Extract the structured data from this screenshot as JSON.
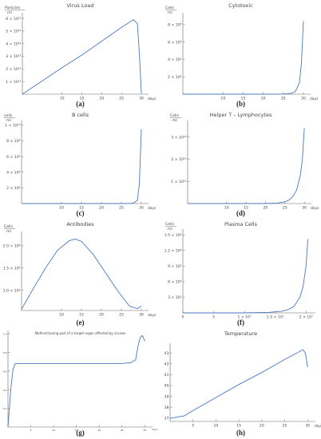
{
  "panels": [
    {
      "label": "(a)",
      "chart_data": {
        "type": "line",
        "title": "Virus Load",
        "ylabel_num": "Particles",
        "ylabel_den": "ml",
        "xlabel": "days",
        "xlim": [
          0,
          31
        ],
        "ylim": [
          0,
          6200000000000.0
        ],
        "xticks": [
          "10",
          "15",
          "20",
          "25",
          "30"
        ],
        "yticks": [
          "1 × 10¹²",
          "2 × 10¹²",
          "3 × 10¹²",
          "4 × 10¹²",
          "5 × 10¹²",
          "6 × 10¹²"
        ],
        "series": [
          {
            "x": [
              0,
              5,
              10,
              15,
              20,
              25,
              28,
              29,
              29.5,
              30
            ],
            "y": [
              0,
              1050000000000.0,
              2100000000000.0,
              3100000000000.0,
              4200000000000.0,
              5300000000000.0,
              5900000000000.0,
              5600000000000.0,
              3200000000000.0,
              100000000000.0
            ]
          }
        ]
      }
    },
    {
      "label": "(b)",
      "chart_data": {
        "type": "line",
        "title": "Cytotoxic",
        "ylabel_num": "Cells",
        "ylabel_den": "ml",
        "xlabel": "days",
        "xlim": [
          0,
          31
        ],
        "ylim": [
          0,
          900000.0
        ],
        "xticks": [
          "10",
          "15",
          "20",
          "25",
          "30"
        ],
        "yticks": [
          "2 × 10⁵",
          "4 × 10⁵",
          "6 × 10⁵",
          "8 × 10⁵"
        ],
        "series": [
          {
            "x": [
              0,
              20,
              25,
              27,
              28,
              29,
              29.5,
              30
            ],
            "y": [
              0,
              0,
              2000.0,
              10000.0,
              30000.0,
              130000.0,
              350000.0,
              840000.0
            ]
          }
        ]
      }
    },
    {
      "label": "(c)",
      "chart_data": {
        "type": "line",
        "title": "B cells",
        "ylabel_num": "cells",
        "ylabel_den": "ml",
        "xlabel": "days",
        "xlim": [
          0,
          31
        ],
        "ylim": [
          0,
          10200000000.0
        ],
        "xticks": [
          "10",
          "15",
          "20",
          "25",
          "30"
        ],
        "yticks": [
          "2 × 10⁹",
          "4 × 10⁹",
          "6 × 10⁹",
          "8 × 10⁹",
          "1 × 10¹⁰"
        ],
        "series": [
          {
            "x": [
              0,
              25,
              27,
              28,
              29,
              29.5,
              30
            ],
            "y": [
              0,
              0,
              10000000.0,
              50000000.0,
              400000000.0,
              2500000000.0,
              9500000000.0
            ]
          }
        ]
      }
    },
    {
      "label": "(d)",
      "chart_data": {
        "type": "line",
        "title": "Helper T – Lymphocytes",
        "ylabel_num": "Cells",
        "ylabel_den": "ml",
        "xlabel": "days",
        "xlim": [
          0,
          31
        ],
        "ylim": [
          0,
          36000000000.0
        ],
        "xticks": [
          "10",
          "15",
          "20",
          "25",
          "30"
        ],
        "yticks": [
          "1 × 10¹⁰",
          "2 × 10¹⁰",
          "3 × 10¹⁰"
        ],
        "series": [
          {
            "x": [
              0,
              20,
              23,
              25,
              26,
              27,
              28,
              29,
              29.5,
              30
            ],
            "y": [
              0,
              0,
              200000000.0,
              800000000.0,
              1500000000.0,
              3000000000.0,
              6000000000.0,
              13000000000.0,
              20000000000.0,
              34000000000.0
            ]
          }
        ]
      }
    },
    {
      "label": "(e)",
      "chart_data": {
        "type": "line",
        "title": "Antibodies",
        "ylabel_num": "Cells",
        "ylabel_den": "ml",
        "xlabel": "days",
        "xlim": [
          0,
          31
        ],
        "ylim": [
          550000000.0,
          2250000000.0
        ],
        "xticks": [
          "10",
          "15",
          "20",
          "25",
          "30"
        ],
        "yticks": [
          "1.0 × 10⁹",
          "1.5 × 10⁹",
          "2.0 × 10⁹"
        ],
        "series": [
          {
            "x": [
              0,
              3,
              6,
              9,
              12,
              13.5,
              15,
              18,
              21,
              24,
              27,
              29,
              30
            ],
            "y": [
              580000000.0,
              1050000000.0,
              1500000000.0,
              1900000000.0,
              2120000000.0,
              2150000000.0,
              2100000000.0,
              1800000000.0,
              1400000000.0,
              1000000000.0,
              650000000.0,
              590000000.0,
              650000000.0
            ]
          }
        ]
      }
    },
    {
      "label": "(f)",
      "chart_data": {
        "type": "line",
        "title": "Plasma Cells",
        "ylabel_num": "Cells",
        "ylabel_den": "ml",
        "xlabel": "",
        "xlim": [
          0,
          21
        ],
        "ylim": [
          0,
          1550000.0
        ],
        "xticks": [
          "0",
          "5",
          "1 × 10⁷",
          "1.5 × 10⁷",
          "2 × 10⁷"
        ],
        "yticks": [
          "3 × 10⁵",
          "6 × 10⁵",
          "9 × 10⁵",
          "1.2 × 10⁶",
          "1.5 × 10⁶"
        ],
        "series": [
          {
            "x": [
              0,
              10,
              14,
              16,
              17,
              18,
              19,
              19.5,
              20,
              20.3
            ],
            "y": [
              0,
              0,
              10000.0,
              30000.0,
              60000.0,
              120000.0,
              300000.0,
              500000.0,
              900000.0,
              1420000.0
            ]
          }
        ]
      }
    },
    {
      "label": "(g)",
      "chart_data": {
        "type": "line",
        "title": "Malfunctioning part of a target organ affected by viruses",
        "ylabel_num": "",
        "ylabel_den": "",
        "xlabel": "days",
        "xlim": [
          0,
          31
        ],
        "ylim": [
          0,
          1.0
        ],
        "xticks": [
          "5",
          "10",
          "15",
          "20",
          "25",
          "30"
        ],
        "yticks": [
          "0.2",
          "0.4",
          "0.6",
          "0.8",
          "1.0"
        ],
        "series": [
          {
            "x": [
              0,
              0.6,
              1.1,
              1.6,
              2.2,
              5,
              10,
              15,
              20,
              25,
              27,
              28,
              28.5,
              29,
              29.5,
              30
            ],
            "y": [
              0,
              0.4,
              0.62,
              0.68,
              0.68,
              0.68,
              0.68,
              0.68,
              0.68,
              0.68,
              0.69,
              0.72,
              0.86,
              0.96,
              0.98,
              0.92
            ]
          }
        ]
      }
    },
    {
      "label": "(h)",
      "chart_data": {
        "type": "line",
        "title": "Temperature",
        "ylabel_num": "°C",
        "ylabel_den": "",
        "xlabel": "days",
        "xlim": [
          0,
          31
        ],
        "ylim": [
          36.7,
          43.6
        ],
        "xticks": [
          "5",
          "10",
          "15",
          "20",
          "25",
          "30"
        ],
        "yticks": [
          "37",
          "38",
          "39",
          "40",
          "41",
          "42",
          "43"
        ],
        "series": [
          {
            "x": [
              0,
              3,
              5,
              10,
              15,
              20,
              25,
              29,
              29.5,
              30
            ],
            "y": [
              37.0,
              37.2,
              37.7,
              38.9,
              40.1,
              41.2,
              42.4,
              43.3,
              43.0,
              41.7
            ]
          }
        ]
      }
    }
  ]
}
